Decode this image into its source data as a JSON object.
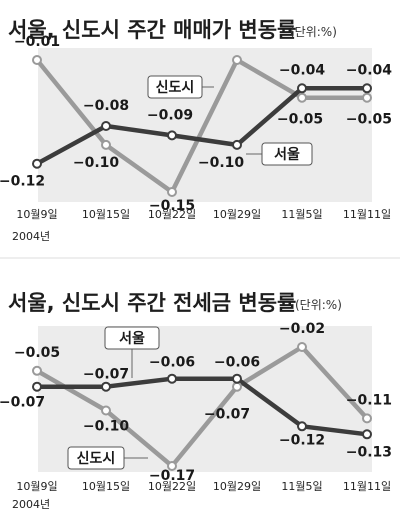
{
  "chart_data": [
    {
      "type": "line",
      "title": "서울, 신도시 주간 매매가 변동률",
      "unit": "(단위:%)",
      "categories": [
        "10월9일",
        "10월15일",
        "10월22일",
        "10월29일",
        "11월5일",
        "11월11일"
      ],
      "year_note": "2004년",
      "ylim": [
        -0.15,
        -0.01
      ],
      "series": [
        {
          "name": "서울",
          "color": "#3c3c3c",
          "values": [
            -0.12,
            -0.08,
            -0.09,
            -0.1,
            -0.04,
            -0.04
          ],
          "labels": [
            "−0.12",
            "−0.08",
            "−0.09",
            "−0.10",
            "−0.04",
            "−0.04"
          ]
        },
        {
          "name": "신도시",
          "color": "#9a9a9a",
          "values": [
            -0.01,
            -0.1,
            -0.15,
            -0.01,
            -0.05,
            -0.05
          ],
          "labels": [
            "−0.01",
            "−0.10",
            "−0.15",
            "",
            "−0.05",
            "−0.05"
          ]
        }
      ]
    },
    {
      "type": "line",
      "title": "서울, 신도시 주간 전세금 변동률",
      "unit": "(단위:%)",
      "categories": [
        "10월9일",
        "10월15일",
        "10월22일",
        "10월29일",
        "11월5일",
        "11월11일"
      ],
      "year_note": "2004년",
      "ylim": [
        -0.17,
        -0.02
      ],
      "series": [
        {
          "name": "서울",
          "color": "#3c3c3c",
          "values": [
            -0.07,
            -0.07,
            -0.06,
            -0.06,
            -0.12,
            -0.13
          ],
          "labels": [
            "−0.07",
            "−0.07",
            "−0.06",
            "−0.06",
            "−0.12",
            "−0.13"
          ]
        },
        {
          "name": "신도시",
          "color": "#9a9a9a",
          "values": [
            -0.05,
            -0.1,
            -0.17,
            -0.07,
            -0.02,
            -0.11
          ],
          "labels": [
            "−0.05",
            "−0.10",
            "−0.17",
            "−0.07",
            "−0.02",
            "−0.11"
          ]
        }
      ]
    }
  ]
}
